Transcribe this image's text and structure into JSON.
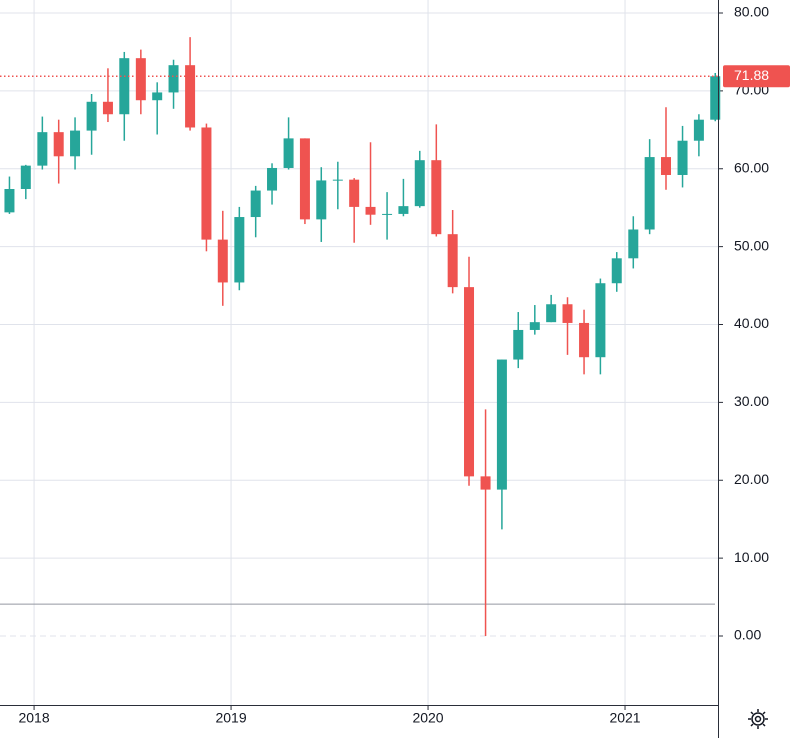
{
  "chart_data": {
    "type": "candlestick",
    "x": [
      2017.875,
      2017.958,
      2018.042,
      2018.125,
      2018.208,
      2018.292,
      2018.375,
      2018.458,
      2018.542,
      2018.625,
      2018.708,
      2018.792,
      2018.875,
      2018.958,
      2019.042,
      2019.125,
      2019.208,
      2019.292,
      2019.375,
      2019.458,
      2019.542,
      2019.625,
      2019.708,
      2019.792,
      2019.875,
      2019.958,
      2020.042,
      2020.125,
      2020.208,
      2020.292,
      2020.375,
      2020.458,
      2020.542,
      2020.625,
      2020.708,
      2020.792,
      2020.875,
      2020.958,
      2021.042,
      2021.125,
      2021.208,
      2021.292,
      2021.375,
      2021.458
    ],
    "open": [
      54.4,
      57.4,
      60.4,
      64.7,
      61.6,
      64.9,
      68.6,
      67.0,
      74.2,
      68.8,
      69.8,
      73.3,
      65.3,
      50.9,
      45.4,
      53.8,
      57.2,
      60.1,
      63.9,
      53.5,
      58.5,
      58.6,
      55.1,
      54.1,
      54.2,
      55.2,
      61.1,
      51.6,
      44.8,
      20.5,
      18.8,
      35.5,
      39.3,
      40.3,
      42.6,
      40.2,
      35.8,
      45.3,
      48.5,
      52.2,
      61.5,
      59.2,
      63.6,
      66.3
    ],
    "high": [
      59.0,
      60.5,
      66.7,
      66.3,
      66.6,
      69.6,
      72.9,
      75.0,
      75.3,
      71.1,
      74.0,
      76.9,
      65.8,
      54.6,
      55.1,
      57.8,
      60.7,
      66.6,
      63.9,
      60.2,
      60.9,
      58.8,
      63.4,
      57.0,
      58.7,
      62.3,
      65.7,
      54.7,
      48.7,
      29.1,
      35.5,
      41.6,
      42.5,
      43.8,
      43.5,
      41.9,
      45.9,
      49.3,
      53.9,
      63.8,
      67.9,
      65.5,
      67.0,
      72.3
    ],
    "low": [
      54.2,
      56.1,
      59.9,
      58.1,
      59.9,
      61.8,
      66.0,
      63.6,
      67.0,
      64.4,
      67.7,
      64.9,
      49.4,
      42.4,
      44.4,
      51.2,
      55.4,
      59.9,
      52.9,
      50.6,
      54.8,
      50.5,
      52.8,
      50.9,
      53.9,
      55.0,
      51.3,
      44.0,
      19.3,
      0.0,
      13.7,
      34.4,
      38.7,
      40.3,
      36.1,
      33.6,
      33.6,
      44.2,
      47.2,
      51.6,
      57.3,
      57.6,
      61.6,
      66.1
    ],
    "close": [
      57.4,
      60.4,
      64.7,
      61.6,
      64.9,
      68.6,
      67.0,
      74.2,
      68.8,
      69.8,
      73.3,
      65.3,
      50.9,
      45.4,
      53.8,
      57.2,
      60.1,
      63.9,
      53.5,
      58.5,
      58.6,
      55.1,
      54.1,
      54.2,
      55.2,
      61.1,
      51.6,
      44.8,
      20.5,
      18.8,
      35.5,
      39.3,
      40.3,
      42.6,
      40.2,
      35.8,
      45.3,
      48.5,
      52.2,
      61.5,
      59.2,
      63.6,
      66.3,
      71.88
    ],
    "up_color": "#26a69a",
    "down_color": "#ef5350",
    "last_price": 71.88,
    "last_price_color": "#ef5350",
    "reference_line": 4.1,
    "reference_line_color": "#9598a1",
    "xlim": [
      2017.827,
      2021.472
    ],
    "xticks": [
      2018,
      2019,
      2020,
      2021
    ],
    "ylim": [
      -8.86,
      81.67
    ],
    "yticks": [
      {
        "value": 0,
        "label": "0.00"
      },
      {
        "value": 10,
        "label": "10.00"
      },
      {
        "value": 20,
        "label": "20.00"
      },
      {
        "value": 30,
        "label": "30.00"
      },
      {
        "value": 40,
        "label": "40.00"
      },
      {
        "value": 50,
        "label": "50.00"
      },
      {
        "value": 60,
        "label": "60.00"
      },
      {
        "value": 70,
        "label": "70.00"
      },
      {
        "value": 80,
        "label": "80.00"
      }
    ],
    "grid": true
  }
}
